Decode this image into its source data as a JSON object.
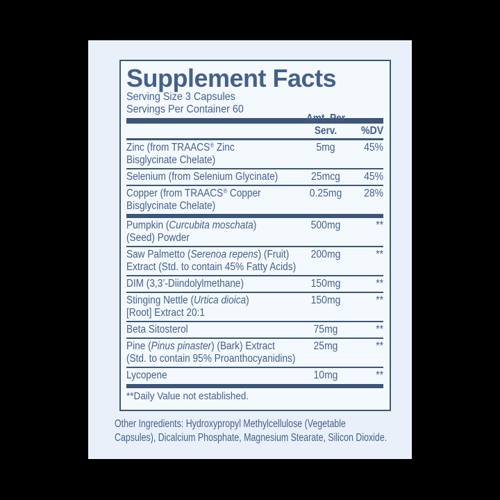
{
  "colors": {
    "page_bg": "#000000",
    "panel_bg": "#e9f0fa",
    "box_bg": "#f4f9fe",
    "ink": "#44608a",
    "rule": "#3c5679"
  },
  "header": {
    "title": "Supplement Facts",
    "serving_size": "Serving Size 3 Capsules",
    "servings_per_container": "Servings Per Container 60"
  },
  "columns": {
    "amount": "Amt. Per Serv.",
    "dv": "%DV"
  },
  "sections": [
    {
      "rows": [
        {
          "name_parts": [
            {
              "style": "normal",
              "text": "Zinc (from TRAACS"
            },
            {
              "style": "sup",
              "text": "®"
            },
            {
              "style": "normal",
              "text": " Zinc\nBisglycinate Chelate)"
            }
          ],
          "amount": "5mg",
          "dv": "45%"
        },
        {
          "name_parts": [
            {
              "style": "normal",
              "text": "Selenium (from Selenium Glycinate)"
            }
          ],
          "amount": "25mcg",
          "dv": "45%"
        },
        {
          "name_parts": [
            {
              "style": "normal",
              "text": "Copper (from TRAACS"
            },
            {
              "style": "sup",
              "text": "®"
            },
            {
              "style": "normal",
              "text": " Copper\nBisglycinate Chelate)"
            }
          ],
          "amount": "0.25mg",
          "dv": "28%"
        }
      ]
    },
    {
      "rows": [
        {
          "name_parts": [
            {
              "style": "normal",
              "text": "Pumpkin ("
            },
            {
              "style": "italic",
              "text": "Curcubita moschata"
            },
            {
              "style": "normal",
              "text": ")\n(Seed) Powder"
            }
          ],
          "amount": "500mg",
          "dv": "**"
        },
        {
          "name_parts": [
            {
              "style": "normal",
              "text": "Saw Palmetto ("
            },
            {
              "style": "italic",
              "text": "Serenoa repens"
            },
            {
              "style": "normal",
              "text": ") (Fruit)\nExtract (Std. to contain 45% Fatty Acids)"
            }
          ],
          "amount": "200mg",
          "dv": "**"
        },
        {
          "name_parts": [
            {
              "style": "normal",
              "text": "DIM (3,3’-Diindolylmethane)"
            }
          ],
          "amount": "150mg",
          "dv": "**"
        },
        {
          "name_parts": [
            {
              "style": "normal",
              "text": "Stinging Nettle ("
            },
            {
              "style": "italic",
              "text": "Urtica dioica"
            },
            {
              "style": "normal",
              "text": ")\n[Root] Extract 20:1"
            }
          ],
          "amount": "150mg",
          "dv": "**"
        },
        {
          "name_parts": [
            {
              "style": "normal",
              "text": "Beta Sitosterol"
            }
          ],
          "amount": "75mg",
          "dv": "**"
        },
        {
          "name_parts": [
            {
              "style": "normal",
              "text": "Pine ("
            },
            {
              "style": "italic",
              "text": "Pinus pinaster"
            },
            {
              "style": "normal",
              "text": ") (Bark) Extract\n(Std. to contain 95% Proanthocyanidins)"
            }
          ],
          "amount": "25mg",
          "dv": "**"
        },
        {
          "name_parts": [
            {
              "style": "normal",
              "text": "Lycopene"
            }
          ],
          "amount": "10mg",
          "dv": "**"
        }
      ]
    }
  ],
  "footnote": "**Daily Value not established.",
  "other_ingredients": "Other Ingredients: Hydroxypropyl Methylcellulose (Vegetable\nCapsules), Dicalcium Phosphate, Magnesium Stearate, Silicon Dioxide."
}
